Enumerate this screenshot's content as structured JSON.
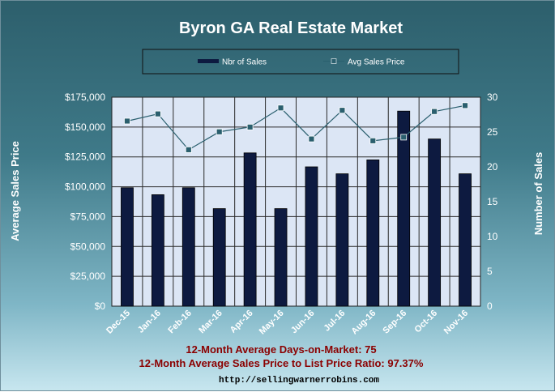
{
  "chart_data": {
    "type": "bar",
    "title": "Byron GA Real Estate Market",
    "categories": [
      "Dec-15",
      "Jan-16",
      "Feb-16",
      "Mar-16",
      "Apr-16",
      "May-16",
      "Jun-16",
      "Jul-16",
      "Aug-16",
      "Sep-16",
      "Oct-16",
      "Nov-16"
    ],
    "series": [
      {
        "name": "Nbr of Sales",
        "type": "bar",
        "axis": "right",
        "color": "#0d1a40",
        "values": [
          17,
          16,
          17,
          14,
          22,
          14,
          20,
          19,
          21,
          28,
          24,
          19
        ]
      },
      {
        "name": "Avg Sales Price",
        "type": "line",
        "axis": "left",
        "color": "#2a5f6e",
        "values": [
          155000,
          161000,
          131000,
          146000,
          150000,
          166000,
          140000,
          164000,
          138500,
          141500,
          163000,
          168000
        ]
      }
    ],
    "y_left": {
      "label": "Average Sales Price",
      "min": 0,
      "max": 175000,
      "step": 25000,
      "tick_labels": [
        "$0",
        "$25,000",
        "$50,000",
        "$75,000",
        "$100,000",
        "$125,000",
        "$150,000",
        "$175,000"
      ]
    },
    "y_right": {
      "label": "Number of Sales",
      "min": 0,
      "max": 30,
      "step": 5,
      "tick_labels": [
        "0",
        "5",
        "10",
        "15",
        "20",
        "25",
        "30"
      ]
    },
    "legend": {
      "position": "top",
      "items": [
        "Nbr of Sales",
        "Avg Sales Price"
      ]
    },
    "grid": true
  },
  "footer": {
    "line1": "12-Month Average Days-on-Market: 75",
    "line2": "12-Month Average Sales Price to List Price Ratio: 97.37%",
    "url": "http://sellingwarnerrobins.com"
  },
  "colors": {
    "plot_bg": "#dce6f5",
    "bar": "#0d1a40",
    "line": "#2a5f6e",
    "footer_text": "#8b0000"
  }
}
